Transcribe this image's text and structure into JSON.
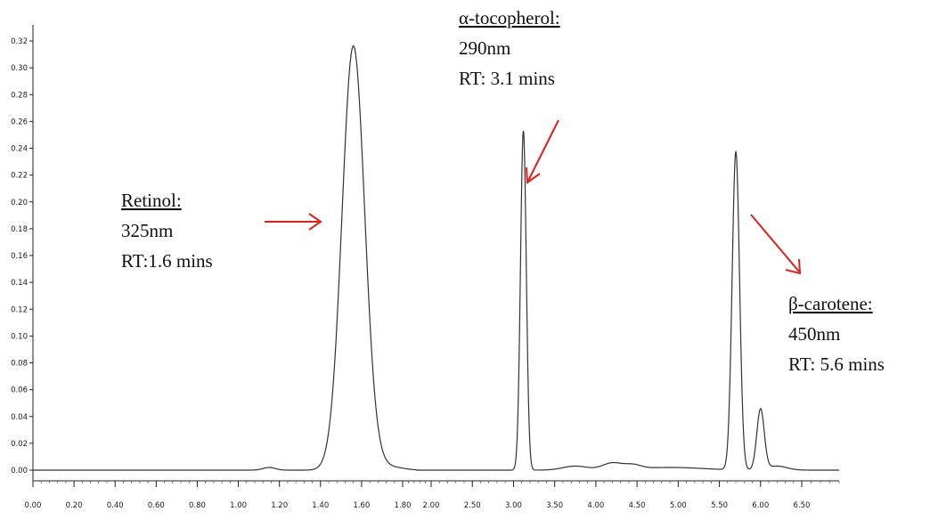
{
  "chart_data": {
    "type": "line",
    "title": "",
    "xlabel": "",
    "ylabel": "",
    "grid": false,
    "x_ticks": [
      "0.00",
      "0.20",
      "0.40",
      "0.60",
      "0.80",
      "1.00",
      "1.20",
      "1.40",
      "1.60",
      "1.80",
      "2.00",
      "2.50",
      "3.00",
      "3.50",
      "4.00",
      "4.50",
      "5.00",
      "5.50",
      "6.00",
      "6.50"
    ],
    "y_ticks": [
      "0.00",
      "0.02",
      "0.04",
      "0.06",
      "0.08",
      "0.10",
      "0.12",
      "0.14",
      "0.16",
      "0.18",
      "0.20",
      "0.22",
      "0.24",
      "0.26",
      "0.28",
      "0.30",
      "0.32"
    ],
    "ylim": [
      0,
      0.32
    ],
    "peaks": [
      {
        "name": "Retinol",
        "wavelength": "325nm",
        "retention_time_min": 1.6,
        "height": 0.314
      },
      {
        "name": "α-tocopherol",
        "wavelength": "290nm",
        "retention_time_min": 3.1,
        "height": 0.253
      },
      {
        "name": "β-carotene",
        "wavelength": "450nm",
        "retention_time_min": 5.6,
        "height": 0.237
      },
      {
        "name": "",
        "retention_time_min": 6.0,
        "height": 0.045
      }
    ],
    "annotations": [
      {
        "title": "Retinol:",
        "line2": "325nm",
        "line3": "RT:1.6 mins"
      },
      {
        "title": "α-tocopherol:",
        "line2": "290nm",
        "line3": "RT: 3.1 mins"
      },
      {
        "title": "β-carotene:",
        "line2": "450nm",
        "line3": "RT: 5.6 mins"
      }
    ],
    "arrow_color": "#e0201c",
    "line_color": "#333333"
  }
}
